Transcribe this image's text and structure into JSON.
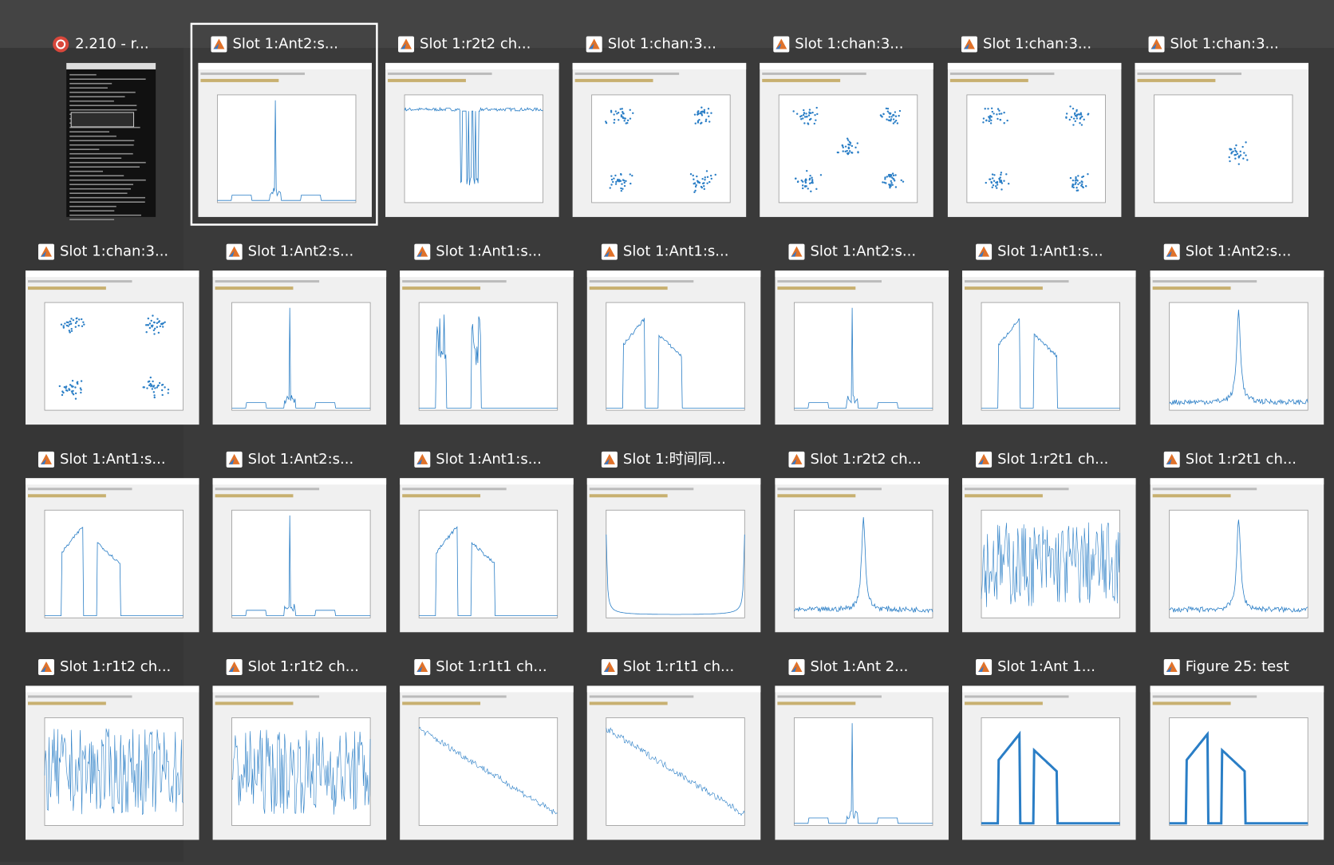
{
  "switcher": {
    "rows": [
      [
        {
          "title": "2.210 - r...",
          "app": "terminal",
          "thumb": "terminal"
        },
        {
          "title": "Slot 1:Ant2:s...",
          "app": "matlab",
          "thumb": "spike"
        },
        {
          "title": "Slot 1:r2t2 ch...",
          "app": "matlab",
          "thumb": "dip"
        },
        {
          "title": "Slot 1:chan:3...",
          "app": "matlab",
          "thumb": "scatter4"
        },
        {
          "title": "Slot 1:chan:3...",
          "app": "matlab",
          "thumb": "scatter5"
        },
        {
          "title": "Slot 1:chan:3...",
          "app": "matlab",
          "thumb": "scatter4"
        },
        {
          "title": "Slot 1:chan:3...",
          "app": "matlab",
          "thumb": "cluster"
        }
      ],
      [
        {
          "title": "Slot 1:chan:3...",
          "app": "matlab",
          "thumb": "scatter4"
        },
        {
          "title": "Slot 1:Ant2:s...",
          "app": "matlab",
          "thumb": "spike"
        },
        {
          "title": "Slot 1:Ant1:s...",
          "app": "matlab",
          "thumb": "pulses"
        },
        {
          "title": "Slot 1:Ant1:s...",
          "app": "matlab",
          "thumb": "ramps"
        },
        {
          "title": "Slot 1:Ant2:s...",
          "app": "matlab",
          "thumb": "spike"
        },
        {
          "title": "Slot 1:Ant1:s...",
          "app": "matlab",
          "thumb": "ramps"
        },
        {
          "title": "Slot 1:Ant2:s...",
          "app": "matlab",
          "thumb": "peak"
        }
      ],
      [
        {
          "title": "Slot 1:Ant1:s...",
          "app": "matlab",
          "thumb": "ramps"
        },
        {
          "title": "Slot 1:Ant2:s...",
          "app": "matlab",
          "thumb": "spike"
        },
        {
          "title": "Slot 1:Ant1:s...",
          "app": "matlab",
          "thumb": "ramps"
        },
        {
          "title": "Slot 1:时间同...",
          "app": "matlab",
          "thumb": "bathtub"
        },
        {
          "title": "Slot 1:r2t2 ch...",
          "app": "matlab",
          "thumb": "peak"
        },
        {
          "title": "Slot 1:r2t1 ch...",
          "app": "matlab",
          "thumb": "noise"
        },
        {
          "title": "Slot 1:r2t1 ch...",
          "app": "matlab",
          "thumb": "peak"
        }
      ],
      [
        {
          "title": "Slot 1:r1t2 ch...",
          "app": "matlab",
          "thumb": "noise"
        },
        {
          "title": "Slot 1:r1t2 ch...",
          "app": "matlab",
          "thumb": "noise"
        },
        {
          "title": "Slot 1:r1t1 ch...",
          "app": "matlab",
          "thumb": "decay"
        },
        {
          "title": "Slot 1:r1t1 ch...",
          "app": "matlab",
          "thumb": "decay"
        },
        {
          "title": "Slot 1:Ant 2...",
          "app": "matlab",
          "thumb": "spike"
        },
        {
          "title": "Slot 1:Ant 1...",
          "app": "matlab",
          "thumb": "blocks"
        },
        {
          "title": "Figure 25: test",
          "app": "matlab",
          "thumb": "blocks"
        }
      ]
    ],
    "selected": [
      0,
      1
    ]
  }
}
